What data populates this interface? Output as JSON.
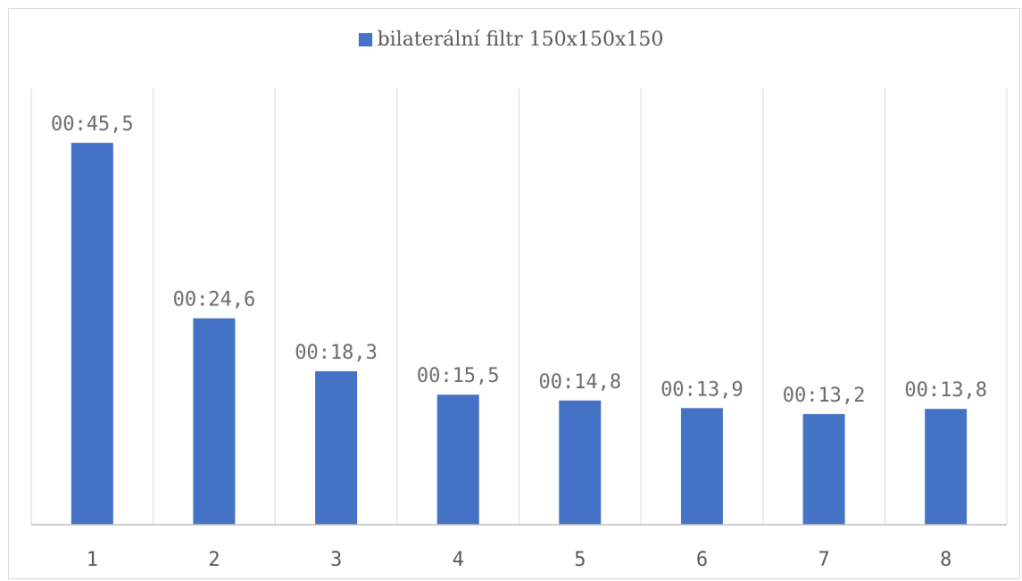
{
  "chart_data": {
    "type": "bar",
    "categories": [
      "1",
      "2",
      "3",
      "4",
      "5",
      "6",
      "7",
      "8"
    ],
    "series": [
      {
        "name": "bilaterální filtr 150x150x150",
        "values": [
          45.5,
          24.6,
          18.3,
          15.5,
          14.8,
          13.9,
          13.2,
          13.8
        ],
        "labels": [
          "00:45,5",
          "00:24,6",
          "00:18,3",
          "00:15,5",
          "00:14,8",
          "00:13,9",
          "00:13,2",
          "00:13,8"
        ],
        "color": "#4472c4"
      }
    ],
    "ylim": [
      0,
      52
    ],
    "grid": "vertical",
    "legend": "top-center",
    "title": "",
    "xlabel": "",
    "ylabel": ""
  }
}
